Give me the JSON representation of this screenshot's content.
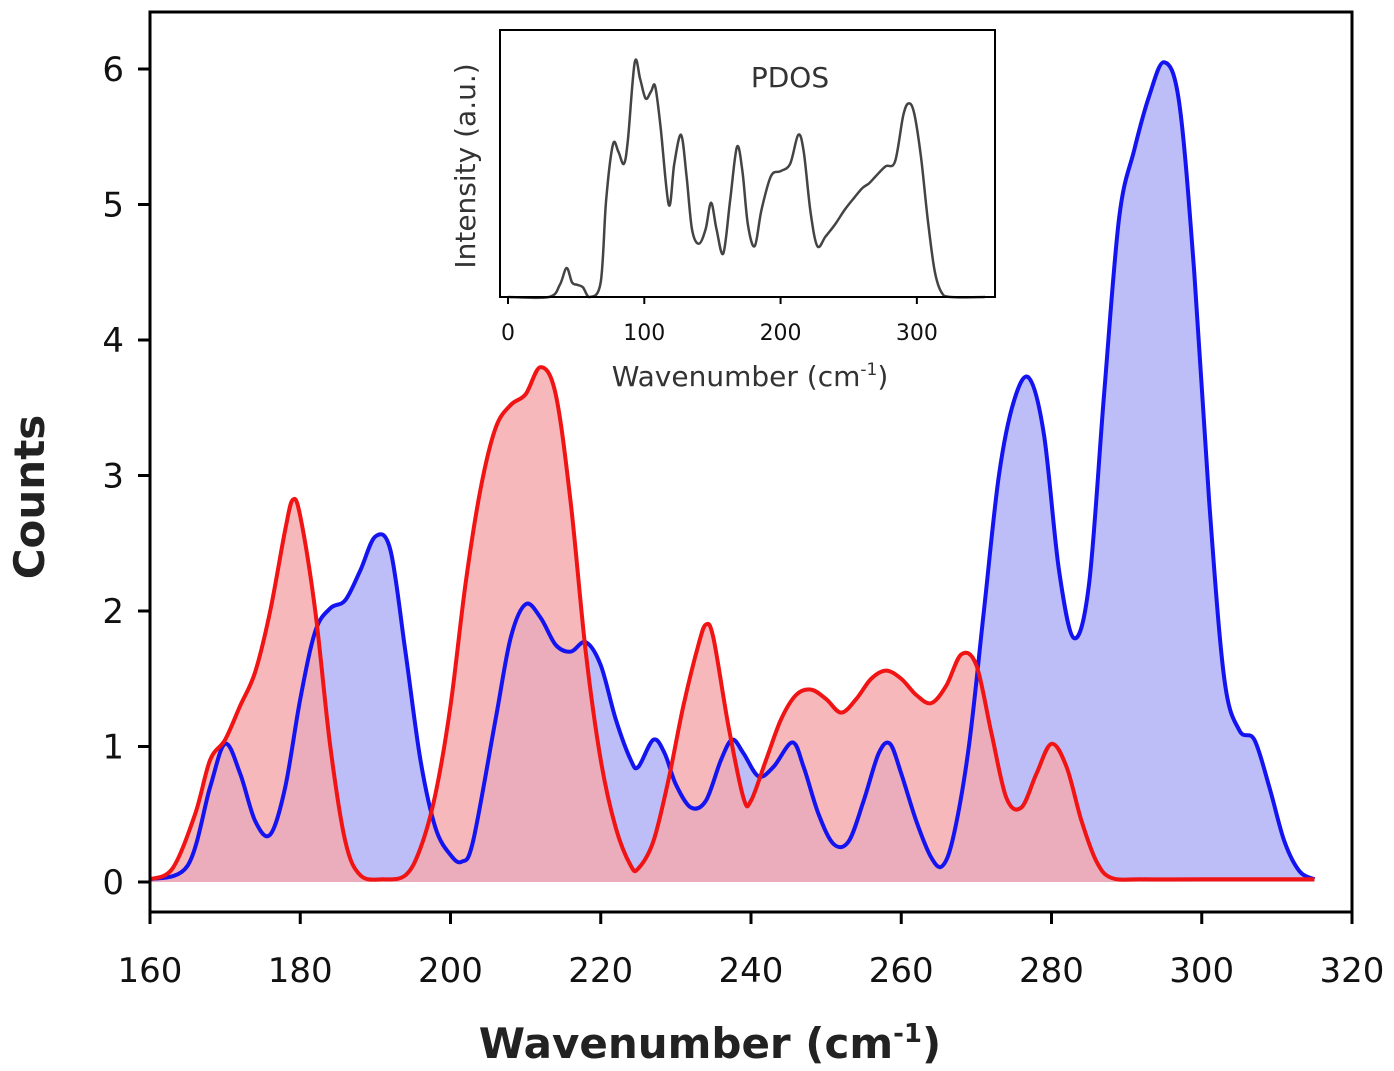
{
  "chart_data": [
    {
      "type": "area",
      "xlabel": "Wavenumber (cm",
      "xlabel_sup": "-1",
      "xlabel_end": ")",
      "ylabel": "Counts",
      "xlim": [
        160,
        320
      ],
      "ylim": [
        0,
        6.5
      ],
      "xticks": [
        "160",
        "180",
        "200",
        "220",
        "240",
        "260",
        "280",
        "300",
        "320"
      ],
      "yticks": [
        "0",
        "1",
        "2",
        "3",
        "4",
        "5",
        "6"
      ],
      "series": [
        {
          "color": "#1414f0",
          "fill": "#aeb0f5",
          "points": [
            [
              160,
              0.02
            ],
            [
              165,
              0.12
            ],
            [
              168,
              0.7
            ],
            [
              170,
              1.02
            ],
            [
              172,
              0.8
            ],
            [
              174,
              0.45
            ],
            [
              176,
              0.35
            ],
            [
              178,
              0.7
            ],
            [
              180,
              1.35
            ],
            [
              182,
              1.85
            ],
            [
              184,
              2.02
            ],
            [
              186,
              2.08
            ],
            [
              188,
              2.3
            ],
            [
              190,
              2.55
            ],
            [
              192,
              2.45
            ],
            [
              194,
              1.7
            ],
            [
              196,
              0.9
            ],
            [
              198,
              0.4
            ],
            [
              200,
              0.2
            ],
            [
              201.5,
              0.15
            ],
            [
              203,
              0.3
            ],
            [
              206,
              1.2
            ],
            [
              208,
              1.8
            ],
            [
              210,
              2.05
            ],
            [
              212,
              1.95
            ],
            [
              214,
              1.75
            ],
            [
              216,
              1.7
            ],
            [
              218,
              1.77
            ],
            [
              220,
              1.6
            ],
            [
              222,
              1.2
            ],
            [
              224,
              0.9
            ],
            [
              225,
              0.85
            ],
            [
              227,
              1.05
            ],
            [
              228.5,
              0.95
            ],
            [
              230,
              0.72
            ],
            [
              232,
              0.55
            ],
            [
              234,
              0.6
            ],
            [
              236,
              0.9
            ],
            [
              237.5,
              1.05
            ],
            [
              239,
              0.95
            ],
            [
              241,
              0.78
            ],
            [
              243,
              0.85
            ],
            [
              245.5,
              1.03
            ],
            [
              247,
              0.85
            ],
            [
              249,
              0.5
            ],
            [
              251,
              0.28
            ],
            [
              253,
              0.3
            ],
            [
              255,
              0.6
            ],
            [
              257,
              0.95
            ],
            [
              258.5,
              1.02
            ],
            [
              260,
              0.8
            ],
            [
              262,
              0.45
            ],
            [
              264,
              0.18
            ],
            [
              265.5,
              0.12
            ],
            [
              267,
              0.35
            ],
            [
              269,
              1.0
            ],
            [
              271,
              2.0
            ],
            [
              273,
              3.0
            ],
            [
              275,
              3.55
            ],
            [
              277,
              3.72
            ],
            [
              279,
              3.3
            ],
            [
              281,
              2.3
            ],
            [
              283,
              1.8
            ],
            [
              285,
              2.2
            ],
            [
              287,
              3.6
            ],
            [
              289,
              4.9
            ],
            [
              291,
              5.4
            ],
            [
              293,
              5.8
            ],
            [
              295,
              6.05
            ],
            [
              297,
              5.75
            ],
            [
              299,
              4.5
            ],
            [
              301,
              2.8
            ],
            [
              303,
              1.5
            ],
            [
              305,
              1.12
            ],
            [
              307,
              1.05
            ],
            [
              309,
              0.7
            ],
            [
              311,
              0.3
            ],
            [
              313,
              0.08
            ],
            [
              315,
              0.02
            ]
          ]
        },
        {
          "color": "#f01414",
          "fill": "#f5a8ad",
          "points": [
            [
              160,
              0.02
            ],
            [
              163,
              0.1
            ],
            [
              166,
              0.5
            ],
            [
              168,
              0.9
            ],
            [
              170,
              1.05
            ],
            [
              172,
              1.3
            ],
            [
              174,
              1.55
            ],
            [
              176,
              2.0
            ],
            [
              178,
              2.6
            ],
            [
              179,
              2.82
            ],
            [
              180,
              2.7
            ],
            [
              182,
              2.0
            ],
            [
              184,
              1.0
            ],
            [
              186,
              0.3
            ],
            [
              188,
              0.05
            ],
            [
              191,
              0.02
            ],
            [
              194,
              0.05
            ],
            [
              196,
              0.25
            ],
            [
              198,
              0.65
            ],
            [
              200,
              1.3
            ],
            [
              202,
              2.2
            ],
            [
              204,
              2.9
            ],
            [
              206,
              3.35
            ],
            [
              208,
              3.52
            ],
            [
              210,
              3.6
            ],
            [
              212,
              3.8
            ],
            [
              214,
              3.6
            ],
            [
              216,
              2.8
            ],
            [
              218,
              1.7
            ],
            [
              220,
              0.9
            ],
            [
              222,
              0.4
            ],
            [
              224,
              0.12
            ],
            [
              225,
              0.1
            ],
            [
              227,
              0.3
            ],
            [
              229,
              0.75
            ],
            [
              231,
              1.3
            ],
            [
              233,
              1.75
            ],
            [
              234,
              1.9
            ],
            [
              235,
              1.8
            ],
            [
              237,
              1.15
            ],
            [
              239,
              0.62
            ],
            [
              240,
              0.6
            ],
            [
              242,
              0.9
            ],
            [
              244,
              1.2
            ],
            [
              246,
              1.38
            ],
            [
              248,
              1.42
            ],
            [
              250,
              1.35
            ],
            [
              252,
              1.25
            ],
            [
              254,
              1.35
            ],
            [
              256,
              1.5
            ],
            [
              258,
              1.56
            ],
            [
              260,
              1.5
            ],
            [
              262,
              1.38
            ],
            [
              264,
              1.32
            ],
            [
              266,
              1.45
            ],
            [
              268,
              1.68
            ],
            [
              270,
              1.6
            ],
            [
              272,
              1.1
            ],
            [
              274,
              0.62
            ],
            [
              276,
              0.55
            ],
            [
              278,
              0.8
            ],
            [
              280,
              1.02
            ],
            [
              282,
              0.85
            ],
            [
              284,
              0.45
            ],
            [
              286,
              0.15
            ],
            [
              288,
              0.03
            ],
            [
              292,
              0.02
            ],
            [
              300,
              0.02
            ],
            [
              315,
              0.02
            ]
          ]
        }
      ]
    },
    {
      "type": "line",
      "title": "PDOS",
      "xlabel": "Wavenumber (cm",
      "xlabel_sup": "-1",
      "xlabel_end": ")",
      "ylabel": "Intensity (a.u.)",
      "xlim": [
        0,
        350
      ],
      "ylim": [
        0,
        1
      ],
      "xticks": [
        "0",
        "100",
        "200",
        "300"
      ],
      "series": [
        {
          "color": "#444444",
          "points": [
            [
              0,
              0
            ],
            [
              30,
              0
            ],
            [
              38,
              0.05
            ],
            [
              43,
              0.12
            ],
            [
              47,
              0.06
            ],
            [
              51,
              0.05
            ],
            [
              55,
              0.04
            ],
            [
              60,
              0.0
            ],
            [
              68,
              0.06
            ],
            [
              72,
              0.4
            ],
            [
              77,
              0.63
            ],
            [
              81,
              0.6
            ],
            [
              85,
              0.55
            ],
            [
              88,
              0.65
            ],
            [
              93,
              0.97
            ],
            [
              97,
              0.9
            ],
            [
              101,
              0.82
            ],
            [
              105,
              0.85
            ],
            [
              108,
              0.87
            ],
            [
              112,
              0.7
            ],
            [
              118,
              0.38
            ],
            [
              122,
              0.55
            ],
            [
              127,
              0.67
            ],
            [
              131,
              0.5
            ],
            [
              135,
              0.28
            ],
            [
              140,
              0.22
            ],
            [
              145,
              0.28
            ],
            [
              149,
              0.39
            ],
            [
              153,
              0.28
            ],
            [
              158,
              0.18
            ],
            [
              163,
              0.4
            ],
            [
              168,
              0.62
            ],
            [
              172,
              0.52
            ],
            [
              176,
              0.3
            ],
            [
              181,
              0.21
            ],
            [
              186,
              0.36
            ],
            [
              193,
              0.5
            ],
            [
              200,
              0.52
            ],
            [
              207,
              0.55
            ],
            [
              213,
              0.67
            ],
            [
              217,
              0.6
            ],
            [
              222,
              0.35
            ],
            [
              227,
              0.21
            ],
            [
              233,
              0.25
            ],
            [
              240,
              0.3
            ],
            [
              247,
              0.36
            ],
            [
              254,
              0.41
            ],
            [
              260,
              0.45
            ],
            [
              265,
              0.47
            ],
            [
              270,
              0.5
            ],
            [
              277,
              0.54
            ],
            [
              284,
              0.56
            ],
            [
              290,
              0.75
            ],
            [
              294,
              0.8
            ],
            [
              298,
              0.76
            ],
            [
              303,
              0.58
            ],
            [
              308,
              0.32
            ],
            [
              313,
              0.11
            ],
            [
              318,
              0.02
            ],
            [
              325,
              0
            ],
            [
              350,
              0
            ]
          ]
        }
      ]
    }
  ]
}
